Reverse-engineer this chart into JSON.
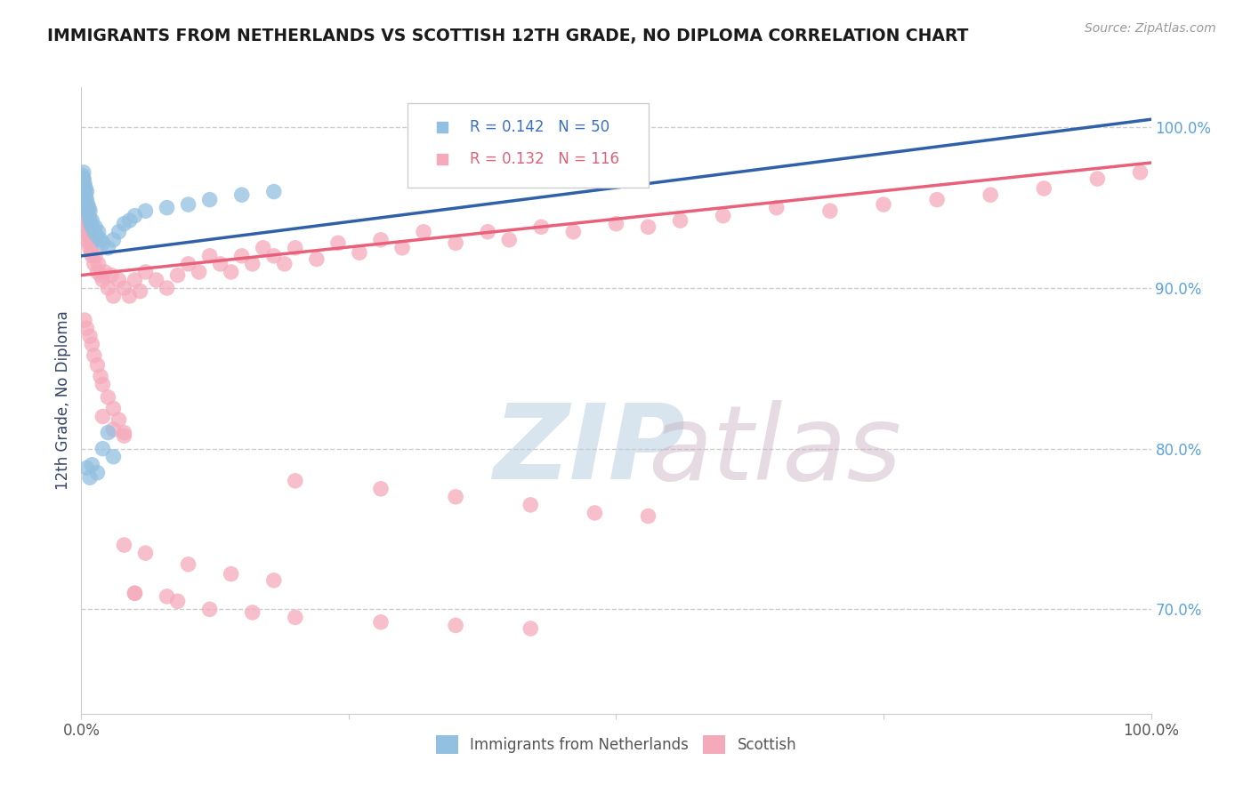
{
  "title": "IMMIGRANTS FROM NETHERLANDS VS SCOTTISH 12TH GRADE, NO DIPLOMA CORRELATION CHART",
  "source": "Source: ZipAtlas.com",
  "ylabel": "12th Grade, No Diploma",
  "xlim": [
    0.0,
    1.0
  ],
  "ylim": [
    0.635,
    1.025
  ],
  "yticks": [
    0.7,
    0.8,
    0.9,
    1.0
  ],
  "ytick_labels": [
    "70.0%",
    "80.0%",
    "90.0%",
    "100.0%"
  ],
  "blue_color": "#92C0E0",
  "pink_color": "#F5AABB",
  "blue_line_color": "#2F60A8",
  "pink_line_color": "#E8607A",
  "legend_R_blue": "R = 0.142",
  "legend_N_blue": "N = 50",
  "legend_R_pink": "R = 0.132",
  "legend_N_pink": "N = 116",
  "legend_label_blue": "Immigrants from Netherlands",
  "legend_label_pink": "Scottish",
  "blue_scatter_x": [
    0.001,
    0.001,
    0.001,
    0.001,
    0.002,
    0.002,
    0.002,
    0.002,
    0.003,
    0.003,
    0.003,
    0.004,
    0.004,
    0.005,
    0.005,
    0.005,
    0.006,
    0.006,
    0.007,
    0.007,
    0.008,
    0.008,
    0.009,
    0.01,
    0.01,
    0.012,
    0.013,
    0.015,
    0.016,
    0.018,
    0.02,
    0.025,
    0.03,
    0.035,
    0.04,
    0.045,
    0.05,
    0.06,
    0.08,
    0.1,
    0.12,
    0.15,
    0.18,
    0.02,
    0.025,
    0.03,
    0.005,
    0.008,
    0.01,
    0.015
  ],
  "blue_scatter_y": [
    0.96,
    0.955,
    0.97,
    0.965,
    0.958,
    0.962,
    0.968,
    0.972,
    0.955,
    0.96,
    0.965,
    0.958,
    0.962,
    0.95,
    0.955,
    0.96,
    0.948,
    0.952,
    0.945,
    0.95,
    0.942,
    0.948,
    0.94,
    0.938,
    0.942,
    0.935,
    0.938,
    0.932,
    0.935,
    0.93,
    0.928,
    0.925,
    0.93,
    0.935,
    0.94,
    0.942,
    0.945,
    0.948,
    0.95,
    0.952,
    0.955,
    0.958,
    0.96,
    0.8,
    0.81,
    0.795,
    0.788,
    0.782,
    0.79,
    0.785
  ],
  "pink_scatter_x": [
    0.001,
    0.001,
    0.001,
    0.001,
    0.001,
    0.002,
    0.002,
    0.002,
    0.002,
    0.003,
    0.003,
    0.003,
    0.004,
    0.004,
    0.004,
    0.005,
    0.005,
    0.005,
    0.006,
    0.006,
    0.007,
    0.007,
    0.008,
    0.008,
    0.009,
    0.01,
    0.01,
    0.012,
    0.013,
    0.015,
    0.016,
    0.018,
    0.02,
    0.022,
    0.025,
    0.028,
    0.03,
    0.035,
    0.04,
    0.045,
    0.05,
    0.055,
    0.06,
    0.07,
    0.08,
    0.09,
    0.1,
    0.11,
    0.12,
    0.13,
    0.14,
    0.15,
    0.16,
    0.17,
    0.18,
    0.19,
    0.2,
    0.22,
    0.24,
    0.26,
    0.28,
    0.3,
    0.32,
    0.35,
    0.38,
    0.4,
    0.43,
    0.46,
    0.5,
    0.53,
    0.56,
    0.6,
    0.65,
    0.7,
    0.75,
    0.8,
    0.85,
    0.9,
    0.95,
    0.99,
    0.003,
    0.005,
    0.008,
    0.01,
    0.012,
    0.015,
    0.018,
    0.02,
    0.025,
    0.03,
    0.035,
    0.04,
    0.02,
    0.03,
    0.04,
    0.2,
    0.28,
    0.35,
    0.42,
    0.48,
    0.53,
    0.04,
    0.06,
    0.1,
    0.14,
    0.18,
    0.05,
    0.09,
    0.12,
    0.16,
    0.2,
    0.28,
    0.35,
    0.42,
    0.05,
    0.08
  ],
  "pink_scatter_y": [
    0.96,
    0.95,
    0.945,
    0.955,
    0.965,
    0.94,
    0.948,
    0.958,
    0.968,
    0.942,
    0.952,
    0.962,
    0.938,
    0.945,
    0.955,
    0.935,
    0.942,
    0.95,
    0.93,
    0.938,
    0.928,
    0.935,
    0.925,
    0.932,
    0.922,
    0.92,
    0.928,
    0.915,
    0.92,
    0.91,
    0.915,
    0.908,
    0.905,
    0.91,
    0.9,
    0.908,
    0.895,
    0.905,
    0.9,
    0.895,
    0.905,
    0.898,
    0.91,
    0.905,
    0.9,
    0.908,
    0.915,
    0.91,
    0.92,
    0.915,
    0.91,
    0.92,
    0.915,
    0.925,
    0.92,
    0.915,
    0.925,
    0.918,
    0.928,
    0.922,
    0.93,
    0.925,
    0.935,
    0.928,
    0.935,
    0.93,
    0.938,
    0.935,
    0.94,
    0.938,
    0.942,
    0.945,
    0.95,
    0.948,
    0.952,
    0.955,
    0.958,
    0.962,
    0.968,
    0.972,
    0.88,
    0.875,
    0.87,
    0.865,
    0.858,
    0.852,
    0.845,
    0.84,
    0.832,
    0.825,
    0.818,
    0.81,
    0.82,
    0.812,
    0.808,
    0.78,
    0.775,
    0.77,
    0.765,
    0.76,
    0.758,
    0.74,
    0.735,
    0.728,
    0.722,
    0.718,
    0.71,
    0.705,
    0.7,
    0.698,
    0.695,
    0.692,
    0.69,
    0.688,
    0.71,
    0.708
  ],
  "blue_line_x0": 0.0,
  "blue_line_y0": 0.92,
  "blue_line_x1": 1.0,
  "blue_line_y1": 1.005,
  "pink_line_x0": 0.0,
  "pink_line_y0": 0.908,
  "pink_line_x1": 1.0,
  "pink_line_y1": 0.978
}
